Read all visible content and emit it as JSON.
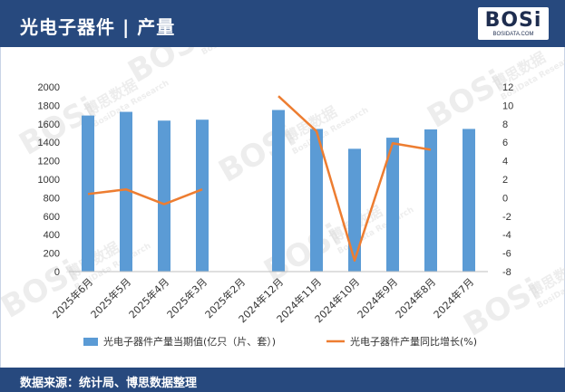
{
  "header": {
    "title": "光电子器件 | 产量",
    "logo_text": "BOSi",
    "logo_subtext": "BOSIDATA.COM"
  },
  "footer": {
    "source": "数据来源：统计局、博思数据整理"
  },
  "watermark": {
    "brand": "BOSi",
    "cn": "博思数据",
    "en": "BosiData Research"
  },
  "colors": {
    "header_bg": "#27497e",
    "bar": "#5b9bd5",
    "line": "#ed7d31"
  },
  "chart_data": {
    "type": "bar",
    "categories": [
      "2025年6月",
      "2025年5月",
      "2025年4月",
      "2025年3月",
      "2025年2月",
      "2024年12月",
      "2024年11月",
      "2024年10月",
      "2024年9月",
      "2024年8月",
      "2024年7月"
    ],
    "series": [
      {
        "name": "光电子器件产量当期值(亿只（片、套）)",
        "type": "bar",
        "axis": "left",
        "values": [
          1690,
          1730,
          1635,
          1645,
          null,
          1750,
          1545,
          1330,
          1450,
          1540,
          1545
        ]
      },
      {
        "name": "光电子器件产量同比增长(%)",
        "type": "line",
        "axis": "right",
        "values": [
          0.4,
          0.9,
          -0.7,
          0.9,
          null,
          11.0,
          7.2,
          -6.8,
          5.9,
          5.2,
          null
        ]
      }
    ],
    "ylim_left": [
      0,
      2000
    ],
    "yticks_left": [
      0,
      200,
      400,
      600,
      800,
      1000,
      1200,
      1400,
      1600,
      1800,
      2000
    ],
    "ylim_right": [
      -8,
      12
    ],
    "yticks_right": [
      -8,
      -6,
      -4,
      -2,
      0,
      2,
      4,
      6,
      8,
      10,
      12
    ],
    "grid": false,
    "legend_position": "bottom"
  }
}
